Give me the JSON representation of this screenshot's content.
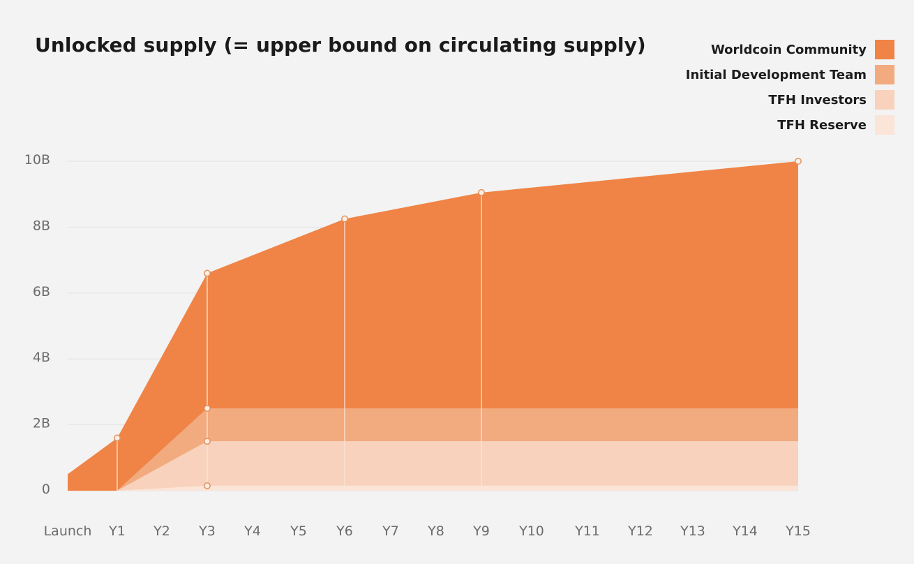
{
  "title": "Unlocked supply (= upper bound on circulating supply)",
  "legend": [
    {
      "label": "Worldcoin Community",
      "color": "#ef8446"
    },
    {
      "label": "Initial Development Team",
      "color": "#f2aa7f"
    },
    {
      "label": "TFH Investors",
      "color": "#f8d2bc"
    },
    {
      "label": "TFH Reserve",
      "color": "#fbe4d8"
    }
  ],
  "chart_data": {
    "type": "area",
    "stacked": true,
    "title": "Unlocked supply (= upper bound on circulating supply)",
    "xlabel": "",
    "ylabel": "",
    "categories": [
      "Launch",
      "Y1",
      "Y2",
      "Y3",
      "Y4",
      "Y5",
      "Y6",
      "Y7",
      "Y8",
      "Y9",
      "Y10",
      "Y11",
      "Y12",
      "Y13",
      "Y14",
      "Y15"
    ],
    "y_ticks": [
      "0",
      "2B",
      "4B",
      "6B",
      "8B",
      "10B"
    ],
    "ylim": [
      0,
      10
    ],
    "units": "billions of tokens",
    "grid": true,
    "legend_position": "top-right",
    "series": [
      {
        "name": "TFH Reserve",
        "color": "#fbe4d8",
        "x": [
          1,
          3,
          15
        ],
        "values": [
          0,
          0.15,
          0.15
        ]
      },
      {
        "name": "TFH Investors",
        "color": "#f8d2bc",
        "x": [
          1,
          3,
          15
        ],
        "values": [
          0,
          1.35,
          1.35
        ]
      },
      {
        "name": "Initial Development Team",
        "color": "#f2aa7f",
        "x": [
          1,
          3,
          15
        ],
        "values": [
          0,
          1.0,
          1.0
        ]
      },
      {
        "name": "Worldcoin Community",
        "color": "#ef8446",
        "x": [
          0,
          1,
          3,
          6,
          9,
          15
        ],
        "values": [
          0.5,
          1.6,
          4.1,
          5.75,
          6.55,
          7.5
        ]
      }
    ],
    "markers": [
      {
        "x": 1,
        "y": 1.6
      },
      {
        "x": 3,
        "y": 6.6
      },
      {
        "x": 3,
        "y": 2.5
      },
      {
        "x": 3,
        "y": 1.5
      },
      {
        "x": 3,
        "y": 0.15
      },
      {
        "x": 6,
        "y": 8.25
      },
      {
        "x": 9,
        "y": 9.05
      },
      {
        "x": 15,
        "y": 10.0
      }
    ]
  }
}
